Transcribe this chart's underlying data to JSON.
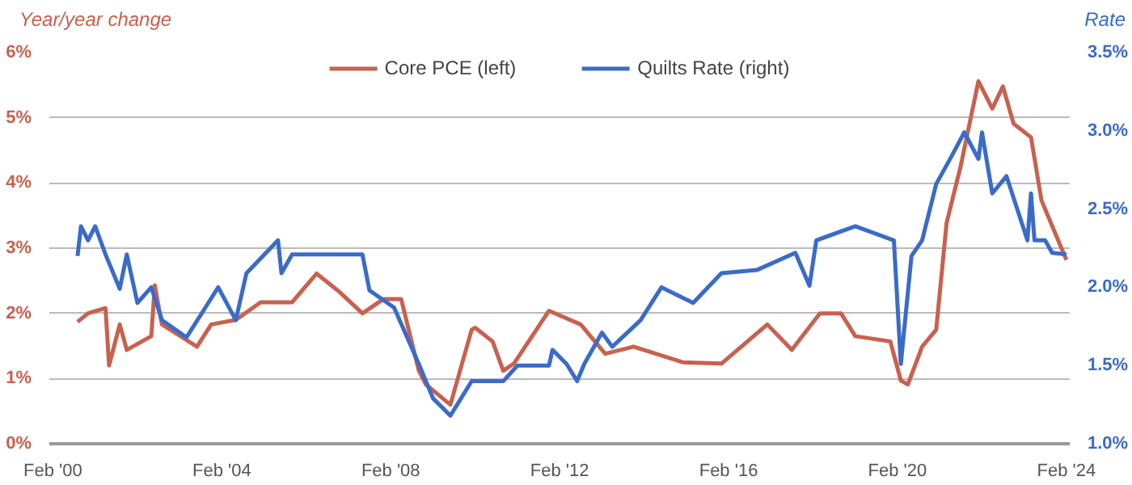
{
  "chart_data": {
    "type": "line",
    "ylabel": "Year/year change",
    "y2label": "Rate",
    "xlim": [
      "2000-01",
      "2024-03"
    ],
    "xticks": [
      {
        "value": "2000-02",
        "label": "Feb '00"
      },
      {
        "value": "2004-02",
        "label": "Feb '04"
      },
      {
        "value": "2008-02",
        "label": "Feb '08"
      },
      {
        "value": "2012-02",
        "label": "Feb '12"
      },
      {
        "value": "2016-02",
        "label": "Feb '16"
      },
      {
        "value": "2020-02",
        "label": "Feb '20"
      },
      {
        "value": "2024-02",
        "label": "Feb '24"
      }
    ],
    "ylim": [
      0,
      6
    ],
    "yticks": [
      {
        "value": 0,
        "label": "0%"
      },
      {
        "value": 1,
        "label": "1%"
      },
      {
        "value": 2,
        "label": "2%"
      },
      {
        "value": 3,
        "label": "3%"
      },
      {
        "value": 4,
        "label": "4%"
      },
      {
        "value": 5,
        "label": "5%"
      },
      {
        "value": 6,
        "label": "6%"
      }
    ],
    "y2lim": [
      1.0,
      3.5
    ],
    "y2ticks": [
      {
        "value": 1.0,
        "label": "1.0%"
      },
      {
        "value": 1.5,
        "label": "1.5%"
      },
      {
        "value": 2.0,
        "label": "2.0%"
      },
      {
        "value": 2.5,
        "label": "2.5%"
      },
      {
        "value": 3.0,
        "label": "3.0%"
      },
      {
        "value": 3.5,
        "label": "3.5%"
      }
    ],
    "grid": "y",
    "legend": "top",
    "line_style": "solid",
    "marker": "none",
    "series": [
      {
        "name": "Core PCE (left)",
        "color": "#c8614e",
        "x": [
          "2000-09",
          "2000-12",
          "2001-05",
          "2001-06",
          "2001-09",
          "2001-11",
          "2002-06",
          "2002-07",
          "2002-09",
          "2003-07",
          "2003-11",
          "2004-06",
          "2005-01",
          "2005-10",
          "2006-05",
          "2006-11",
          "2007-06",
          "2007-12",
          "2008-05",
          "2008-10",
          "2008-12",
          "2009-07",
          "2010-01",
          "2010-02",
          "2010-07",
          "2010-10",
          "2011-01",
          "2011-11",
          "2012-08",
          "2013-03",
          "2013-11",
          "2015-01",
          "2015-12",
          "2017-01",
          "2017-08",
          "2018-04",
          "2018-10",
          "2019-02",
          "2019-12",
          "2020-03",
          "2020-05",
          "2020-09",
          "2021-01",
          "2021-04",
          "2021-08",
          "2022-01",
          "2022-05",
          "2022-08",
          "2022-11",
          "2023-04",
          "2023-07",
          "2024-02"
        ],
        "values": [
          1.87,
          2.0,
          2.08,
          1.2,
          1.83,
          1.44,
          1.65,
          2.43,
          1.83,
          1.49,
          1.83,
          1.9,
          2.17,
          2.17,
          2.61,
          2.35,
          2.0,
          2.22,
          2.22,
          1.12,
          0.91,
          0.6,
          1.75,
          1.78,
          1.57,
          1.12,
          1.23,
          2.04,
          1.83,
          1.38,
          1.49,
          1.25,
          1.23,
          1.83,
          1.44,
          2.0,
          2.0,
          1.65,
          1.57,
          0.97,
          0.91,
          1.49,
          1.75,
          3.39,
          4.26,
          5.56,
          5.14,
          5.48,
          4.91,
          4.7,
          3.73,
          2.82
        ]
      },
      {
        "name": "Quilts Rate (right)",
        "color": "#3a6bc9",
        "axis": "y2",
        "x": [
          "2000-09",
          "2000-10",
          "2000-12",
          "2001-02",
          "2001-05",
          "2001-09",
          "2001-11",
          "2002-02",
          "2002-06",
          "2002-09",
          "2003-04",
          "2004-01",
          "2004-06",
          "2004-09",
          "2005-06",
          "2005-07",
          "2005-10",
          "2007-06",
          "2007-08",
          "2008-03",
          "2008-10",
          "2009-02",
          "2009-07",
          "2010-01",
          "2010-10",
          "2011-02",
          "2011-11",
          "2011-12",
          "2012-04",
          "2012-07",
          "2012-09",
          "2013-02",
          "2013-05",
          "2014-01",
          "2014-07",
          "2015-04",
          "2015-12",
          "2016-10",
          "2017-09",
          "2018-01",
          "2018-03",
          "2019-02",
          "2020-01",
          "2020-03",
          "2020-06",
          "2020-09",
          "2021-01",
          "2021-05",
          "2021-09",
          "2022-01",
          "2022-02",
          "2022-05",
          "2022-09",
          "2023-03",
          "2023-04",
          "2023-05",
          "2023-08",
          "2023-10",
          "2024-02"
        ],
        "values": [
          2.2,
          2.39,
          2.3,
          2.39,
          2.21,
          1.99,
          2.21,
          1.9,
          2.0,
          1.79,
          1.68,
          2.0,
          1.79,
          2.09,
          2.3,
          2.09,
          2.21,
          2.21,
          1.98,
          1.87,
          1.51,
          1.29,
          1.18,
          1.4,
          1.4,
          1.5,
          1.5,
          1.6,
          1.51,
          1.4,
          1.51,
          1.71,
          1.62,
          1.79,
          2.0,
          1.9,
          2.09,
          2.11,
          2.22,
          2.01,
          2.3,
          2.39,
          2.3,
          1.51,
          2.2,
          2.3,
          2.66,
          2.82,
          2.99,
          2.82,
          2.99,
          2.6,
          2.71,
          2.3,
          2.6,
          2.3,
          2.3,
          2.22,
          2.21
        ]
      }
    ]
  }
}
